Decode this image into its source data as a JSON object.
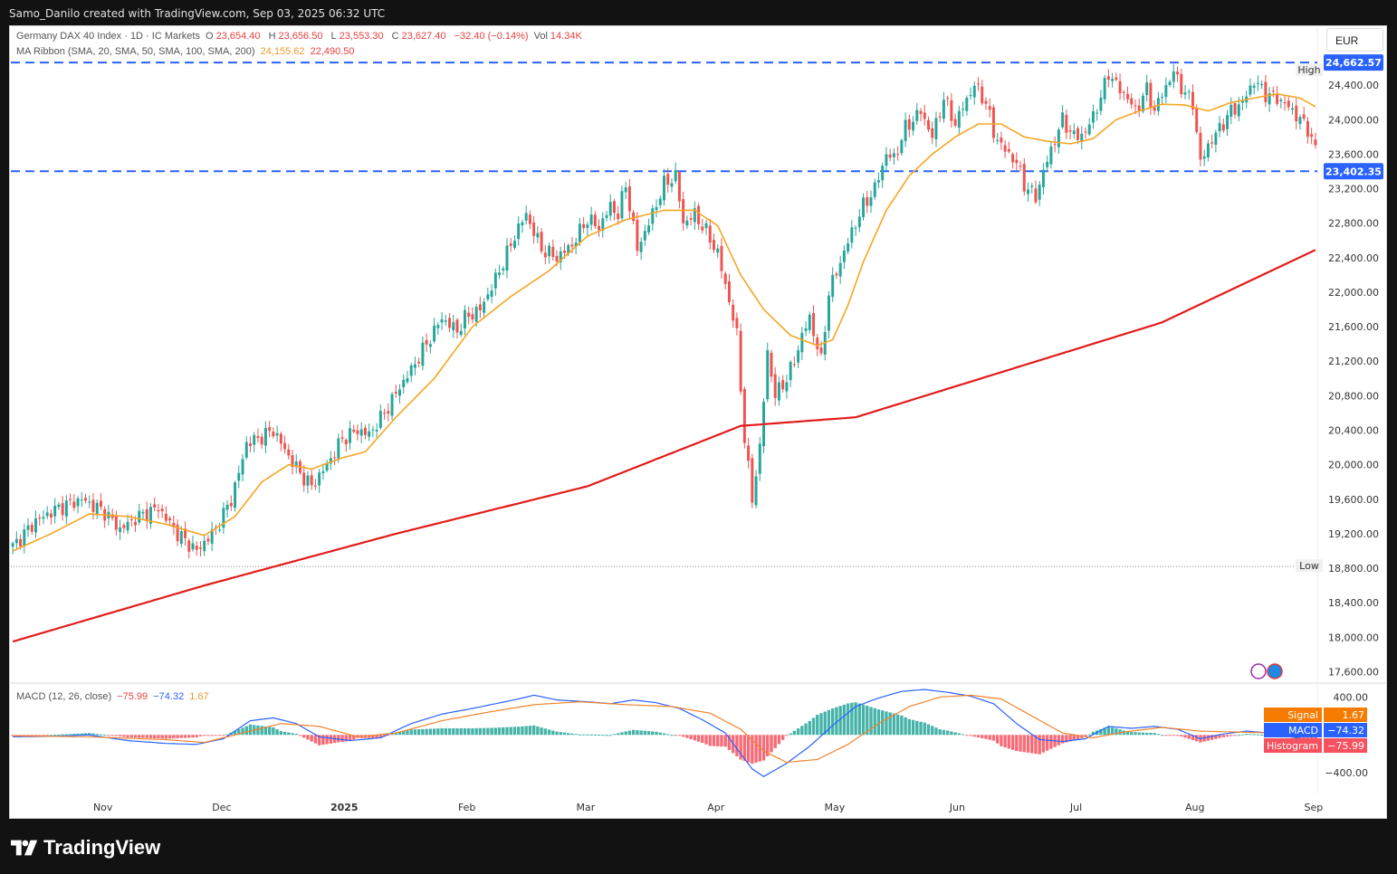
{
  "header": {
    "credit": "Samo_Danilo created with TradingView.com, Sep 03, 2025 06:32 UTC"
  },
  "legend": {
    "symbol": "Germany DAX 40 Index · 1D · IC Markets",
    "open_label": "O",
    "open": "23,654.40",
    "high_label": "H",
    "high": "23,656.50",
    "low_label": "L",
    "low": "23,553.30",
    "close_label": "C",
    "close": "23,627.40",
    "change": "−32.40 (−0.14%)",
    "vol_label": "Vol",
    "vol": "14.34K",
    "ma_label": "MA Ribbon (SMA, 20, SMA, 50, SMA, 100, SMA, 200)",
    "ma_val1": "24,155.62",
    "ma_val2": "22,490.50"
  },
  "currency": "EUR",
  "macd_legend": {
    "label": "MACD (12, 26, close)",
    "v1": "−75.99",
    "v2": "−74.32",
    "v3": "1.67"
  },
  "colors": {
    "up": "#26a69a",
    "down": "#ef5350",
    "ma20": "#f5a623",
    "ma200": "#e31b1b",
    "hline": "#2962ff",
    "macd": "#2962ff",
    "signal": "#f0842c",
    "hist_neg": "#f5515f",
    "hist_pos": "#26a69a"
  },
  "footer": {
    "brand": "TradingView"
  },
  "chart_data": [
    {
      "type": "candlestick",
      "y_axis_labels": [
        "24,400.00",
        "24,000.00",
        "23,600.00",
        "23,200.00",
        "22,800.00",
        "22,400.00",
        "22,000.00",
        "21,600.00",
        "21,200.00",
        "20,800.00",
        "20,400.00",
        "20,000.00",
        "19,600.00",
        "19,200.00",
        "18,800.00",
        "18,400.00",
        "18,000.00",
        "17,600.00"
      ],
      "ylim": [
        17500,
        24800
      ],
      "x_axis_labels": [
        "Nov",
        "Dec",
        "2025",
        "Feb",
        "Mar",
        "Apr",
        "May",
        "Jun",
        "Jul",
        "Aug",
        "Sep"
      ],
      "x_labels_bold": [
        "2025"
      ],
      "horizontal_lines": [
        {
          "label": "24,662.57",
          "value": 24662.57,
          "tag": "High",
          "style": "dashed"
        },
        {
          "label": "23,402.35",
          "value": 23402.35,
          "style": "dashed"
        },
        {
          "value": 18820,
          "tag": "Low",
          "style": "dotted"
        }
      ],
      "anchors": [
        [
          0,
          19050
        ],
        [
          6,
          19350
        ],
        [
          12,
          19500
        ],
        [
          18,
          19600
        ],
        [
          24,
          19450
        ],
        [
          28,
          19250
        ],
        [
          32,
          19380
        ],
        [
          38,
          19500
        ],
        [
          43,
          19200
        ],
        [
          48,
          19000
        ],
        [
          50,
          19100
        ],
        [
          53,
          19250
        ],
        [
          57,
          19600
        ],
        [
          59,
          19900
        ],
        [
          61,
          20250
        ],
        [
          64,
          20300
        ],
        [
          68,
          20400
        ],
        [
          72,
          20100
        ],
        [
          75,
          19900
        ],
        [
          78,
          19750
        ],
        [
          82,
          20000
        ],
        [
          86,
          20300
        ],
        [
          90,
          20400
        ],
        [
          93,
          20350
        ],
        [
          97,
          20600
        ],
        [
          101,
          20900
        ],
        [
          104,
          21100
        ],
        [
          108,
          21400
        ],
        [
          112,
          21700
        ],
        [
          116,
          21550
        ],
        [
          118,
          21700
        ],
        [
          122,
          21800
        ],
        [
          126,
          22150
        ],
        [
          128,
          22350
        ],
        [
          132,
          22750
        ],
        [
          134,
          22900
        ],
        [
          138,
          22500
        ],
        [
          142,
          22400
        ],
        [
          146,
          22550
        ],
        [
          150,
          22850
        ],
        [
          153,
          22750
        ],
        [
          156,
          23000
        ],
        [
          158,
          22900
        ],
        [
          160,
          23250
        ],
        [
          163,
          22500
        ],
        [
          166,
          22800
        ],
        [
          170,
          23250
        ],
        [
          173,
          23350
        ],
        [
          175,
          22800
        ],
        [
          178,
          22900
        ],
        [
          181,
          22700
        ],
        [
          184,
          22450
        ],
        [
          187,
          21900
        ],
        [
          189,
          21500
        ],
        [
          191,
          20300
        ],
        [
          193,
          19600
        ],
        [
          195,
          20200
        ],
        [
          197,
          21300
        ],
        [
          199,
          20800
        ],
        [
          202,
          21000
        ],
        [
          204,
          21200
        ],
        [
          206,
          21500
        ],
        [
          208,
          21700
        ],
        [
          211,
          21200
        ],
        [
          213,
          22000
        ],
        [
          216,
          22350
        ],
        [
          219,
          22700
        ],
        [
          222,
          23000
        ],
        [
          225,
          23200
        ],
        [
          228,
          23600
        ],
        [
          230,
          23550
        ],
        [
          233,
          23900
        ],
        [
          237,
          24100
        ],
        [
          240,
          23800
        ],
        [
          243,
          24250
        ],
        [
          246,
          23950
        ],
        [
          248,
          24150
        ],
        [
          251,
          24400
        ],
        [
          254,
          24200
        ],
        [
          256,
          23850
        ],
        [
          258,
          23700
        ],
        [
          262,
          23500
        ],
        [
          264,
          23250
        ],
        [
          267,
          23100
        ],
        [
          269,
          23400
        ],
        [
          271,
          23650
        ],
        [
          274,
          24000
        ],
        [
          277,
          23800
        ],
        [
          280,
          23850
        ],
        [
          282,
          24050
        ],
        [
          284,
          24250
        ],
        [
          286,
          24550
        ],
        [
          288,
          24400
        ],
        [
          291,
          24250
        ],
        [
          293,
          24100
        ],
        [
          296,
          24350
        ],
        [
          298,
          24100
        ],
        [
          300,
          24300
        ],
        [
          303,
          24550
        ],
        [
          306,
          24300
        ],
        [
          308,
          24200
        ],
        [
          310,
          23500
        ],
        [
          312,
          23700
        ],
        [
          315,
          23900
        ],
        [
          318,
          24100
        ],
        [
          321,
          24200
        ],
        [
          324,
          24450
        ],
        [
          327,
          24300
        ],
        [
          330,
          24250
        ],
        [
          333,
          24150
        ],
        [
          336,
          24000
        ],
        [
          338,
          23900
        ],
        [
          340,
          23650
        ]
      ],
      "ma20_anchors": [
        [
          0,
          19000
        ],
        [
          10,
          19200
        ],
        [
          20,
          19430
        ],
        [
          30,
          19400
        ],
        [
          40,
          19310
        ],
        [
          50,
          19180
        ],
        [
          58,
          19400
        ],
        [
          65,
          19800
        ],
        [
          72,
          20000
        ],
        [
          78,
          19950
        ],
        [
          86,
          20080
        ],
        [
          92,
          20150
        ],
        [
          100,
          20550
        ],
        [
          110,
          21000
        ],
        [
          120,
          21600
        ],
        [
          130,
          21950
        ],
        [
          140,
          22250
        ],
        [
          150,
          22650
        ],
        [
          160,
          22840
        ],
        [
          170,
          22950
        ],
        [
          178,
          22950
        ],
        [
          184,
          22770
        ],
        [
          190,
          22200
        ],
        [
          196,
          21800
        ],
        [
          203,
          21500
        ],
        [
          210,
          21380
        ],
        [
          214,
          21450
        ],
        [
          218,
          21850
        ],
        [
          222,
          22350
        ],
        [
          228,
          22950
        ],
        [
          234,
          23350
        ],
        [
          240,
          23600
        ],
        [
          246,
          23800
        ],
        [
          252,
          23950
        ],
        [
          258,
          23950
        ],
        [
          264,
          23800
        ],
        [
          270,
          23750
        ],
        [
          276,
          23720
        ],
        [
          282,
          23780
        ],
        [
          288,
          24000
        ],
        [
          294,
          24100
        ],
        [
          300,
          24180
        ],
        [
          306,
          24170
        ],
        [
          312,
          24100
        ],
        [
          318,
          24200
        ],
        [
          324,
          24250
        ],
        [
          330,
          24300
        ],
        [
          336,
          24250
        ],
        [
          340,
          24150
        ]
      ],
      "ma200_anchors": [
        [
          0,
          17950
        ],
        [
          50,
          18600
        ],
        [
          100,
          19200
        ],
        [
          150,
          19750
        ],
        [
          190,
          20450
        ],
        [
          220,
          20550
        ],
        [
          260,
          21100
        ],
        [
          300,
          21650
        ],
        [
          340,
          22490
        ]
      ],
      "series_last": {
        "ma20": 24155.62,
        "ma200": 22490.5
      }
    },
    {
      "type": "macd",
      "labels": {
        "signal": "Signal",
        "macd": "MACD",
        "histogram": "Histogram"
      },
      "values": {
        "signal": "1.67",
        "macd": "−74.32",
        "histogram": "−75.99"
      },
      "y_axis_labels": [
        "400.00",
        "−400.00"
      ],
      "y_ticks": [
        400,
        -400
      ],
      "ylim": [
        -600,
        500
      ],
      "macd_anchors": [
        [
          0,
          -20
        ],
        [
          10,
          -15
        ],
        [
          20,
          0
        ],
        [
          30,
          -60
        ],
        [
          40,
          -90
        ],
        [
          48,
          -100
        ],
        [
          55,
          -40
        ],
        [
          62,
          150
        ],
        [
          68,
          180
        ],
        [
          74,
          120
        ],
        [
          80,
          -20
        ],
        [
          88,
          -60
        ],
        [
          96,
          -30
        ],
        [
          104,
          120
        ],
        [
          112,
          220
        ],
        [
          120,
          280
        ],
        [
          126,
          330
        ],
        [
          132,
          380
        ],
        [
          136,
          420
        ],
        [
          142,
          370
        ],
        [
          150,
          350
        ],
        [
          156,
          330
        ],
        [
          162,
          370
        ],
        [
          168,
          340
        ],
        [
          174,
          280
        ],
        [
          180,
          160
        ],
        [
          186,
          20
        ],
        [
          190,
          -200
        ],
        [
          193,
          -360
        ],
        [
          196,
          -440
        ],
        [
          202,
          -300
        ],
        [
          208,
          -120
        ],
        [
          214,
          100
        ],
        [
          220,
          300
        ],
        [
          226,
          390
        ],
        [
          232,
          460
        ],
        [
          238,
          480
        ],
        [
          244,
          450
        ],
        [
          250,
          410
        ],
        [
          256,
          330
        ],
        [
          262,
          120
        ],
        [
          268,
          -50
        ],
        [
          274,
          -70
        ],
        [
          280,
          -40
        ],
        [
          286,
          90
        ],
        [
          292,
          70
        ],
        [
          298,
          90
        ],
        [
          304,
          60
        ],
        [
          310,
          -40
        ],
        [
          316,
          10
        ],
        [
          322,
          40
        ],
        [
          328,
          20
        ],
        [
          334,
          -20
        ],
        [
          340,
          -80
        ]
      ],
      "signal_anchors": [
        [
          0,
          -10
        ],
        [
          20,
          -20
        ],
        [
          40,
          -50
        ],
        [
          50,
          -80
        ],
        [
          60,
          20
        ],
        [
          70,
          120
        ],
        [
          80,
          90
        ],
        [
          90,
          -20
        ],
        [
          100,
          20
        ],
        [
          112,
          150
        ],
        [
          124,
          240
        ],
        [
          136,
          320
        ],
        [
          148,
          350
        ],
        [
          160,
          320
        ],
        [
          172,
          300
        ],
        [
          182,
          230
        ],
        [
          190,
          60
        ],
        [
          196,
          -170
        ],
        [
          202,
          -290
        ],
        [
          210,
          -260
        ],
        [
          218,
          -100
        ],
        [
          226,
          120
        ],
        [
          234,
          300
        ],
        [
          242,
          400
        ],
        [
          250,
          420
        ],
        [
          258,
          380
        ],
        [
          266,
          200
        ],
        [
          274,
          20
        ],
        [
          282,
          -30
        ],
        [
          290,
          30
        ],
        [
          300,
          80
        ],
        [
          310,
          40
        ],
        [
          320,
          30
        ],
        [
          330,
          20
        ],
        [
          340,
          0
        ]
      ]
    }
  ]
}
